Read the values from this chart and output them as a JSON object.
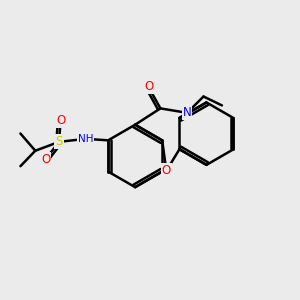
{
  "background_color": "#ebebeb",
  "bond_color": "#000000",
  "bond_width": 1.8,
  "figsize": [
    3.0,
    3.0
  ],
  "dpi": 100,
  "atom_colors": {
    "N": "#0000ff",
    "O": "#ff0000",
    "S": "#cccc00",
    "H": "#888888"
  }
}
